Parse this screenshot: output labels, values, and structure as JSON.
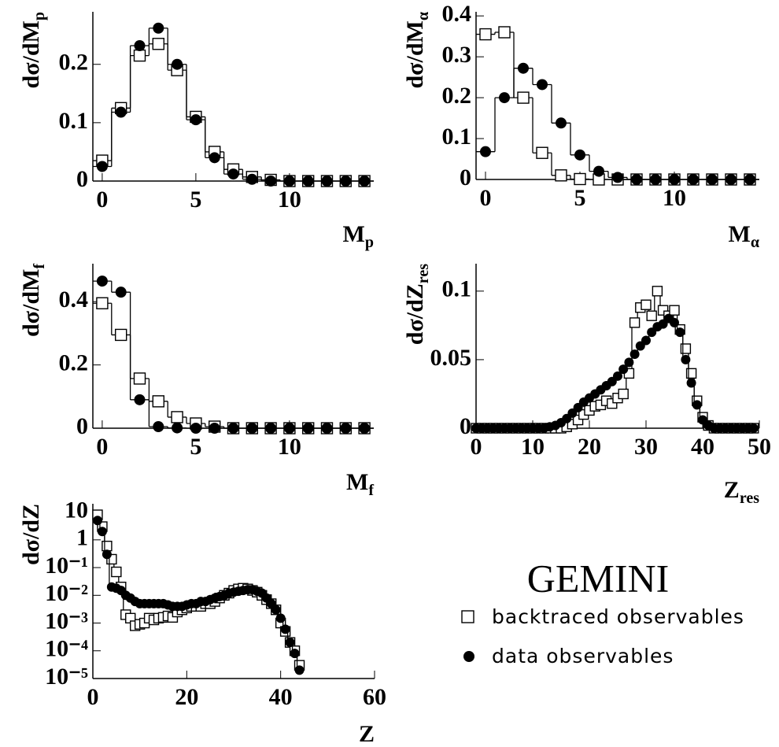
{
  "chart_data": [
    {
      "type": "step",
      "xlabel": {
        "text": "M",
        "sub": "p"
      },
      "ylabel": {
        "text": "dσ/dM",
        "sub": "p"
      },
      "x": [
        0,
        1,
        2,
        3,
        4,
        5,
        6,
        7,
        8,
        9,
        10,
        11,
        12,
        13,
        14
      ],
      "series": [
        {
          "name": "backtraced observables",
          "marker": "square",
          "color": "#000000",
          "values": [
            0.035,
            0.125,
            0.215,
            0.235,
            0.19,
            0.11,
            0.05,
            0.02,
            0.007,
            0.002,
            0,
            0,
            0,
            0,
            0
          ]
        },
        {
          "name": "data observables",
          "marker": "circle",
          "color": "#000000",
          "values": [
            0.025,
            0.118,
            0.232,
            0.262,
            0.2,
            0.105,
            0.04,
            0.012,
            0.003,
            0,
            0,
            0,
            0,
            0,
            0
          ]
        }
      ],
      "xlim": [
        -0.5,
        14.5
      ],
      "xticks": [
        0,
        5,
        10
      ],
      "ylim": [
        0,
        0.29
      ],
      "yticks": [
        0,
        0.1,
        0.2
      ]
    },
    {
      "type": "step",
      "xlabel": {
        "text": "M",
        "sub": "α"
      },
      "ylabel": {
        "text": "dσ/dM",
        "sub": "α"
      },
      "x": [
        0,
        1,
        2,
        3,
        4,
        5,
        6,
        7,
        8,
        9,
        10,
        11,
        12,
        13,
        14
      ],
      "series": [
        {
          "name": "backtraced observables",
          "marker": "square",
          "color": "#000000",
          "values": [
            0.355,
            0.36,
            0.2,
            0.065,
            0.01,
            0.001,
            0,
            0,
            0,
            0,
            0,
            0,
            0,
            0,
            0
          ]
        },
        {
          "name": "data observables",
          "marker": "circle",
          "color": "#000000",
          "values": [
            0.068,
            0.2,
            0.272,
            0.232,
            0.138,
            0.06,
            0.02,
            0.005,
            0,
            0,
            0,
            0,
            0,
            0,
            0
          ]
        }
      ],
      "xlim": [
        -0.5,
        14.5
      ],
      "xticks": [
        0,
        5,
        10
      ],
      "ylim": [
        0,
        0.41
      ],
      "yticks": [
        0,
        0.1,
        0.2,
        0.3,
        0.4
      ]
    },
    {
      "type": "step",
      "xlabel": {
        "text": "M",
        "sub": "f"
      },
      "ylabel": {
        "text": "dσ/dM",
        "sub": "f"
      },
      "x": [
        0,
        1,
        2,
        3,
        4,
        5,
        6,
        7,
        8,
        9,
        10,
        11,
        12,
        13,
        14
      ],
      "series": [
        {
          "name": "backtraced observables",
          "marker": "square",
          "color": "#000000",
          "values": [
            0.395,
            0.295,
            0.157,
            0.085,
            0.035,
            0.015,
            0.005,
            0,
            0,
            0,
            0,
            0,
            0,
            0,
            0
          ]
        },
        {
          "name": "data observables",
          "marker": "circle",
          "color": "#000000",
          "values": [
            0.465,
            0.43,
            0.09,
            0.005,
            0.001,
            0,
            0,
            0,
            0,
            0,
            0,
            0,
            0,
            0,
            0
          ]
        }
      ],
      "xlim": [
        -0.5,
        14.5
      ],
      "xticks": [
        0,
        5,
        10
      ],
      "ylim": [
        0,
        0.52
      ],
      "yticks": [
        0,
        0.2,
        0.4
      ]
    },
    {
      "type": "step",
      "xlabel": {
        "text": "Z",
        "sub": "res"
      },
      "ylabel": {
        "text": "dσ/dZ",
        "sub": "res"
      },
      "x": [
        0,
        1,
        2,
        3,
        4,
        5,
        6,
        7,
        8,
        9,
        10,
        11,
        12,
        13,
        14,
        15,
        16,
        17,
        18,
        19,
        20,
        21,
        22,
        23,
        24,
        25,
        26,
        27,
        28,
        29,
        30,
        31,
        32,
        33,
        34,
        35,
        36,
        37,
        38,
        39,
        40,
        41,
        42,
        43,
        44,
        45,
        46,
        47,
        48,
        49
      ],
      "series": [
        {
          "name": "backtraced observables",
          "marker": "square",
          "color": "#000000",
          "values": [
            0,
            0,
            0,
            0,
            0,
            0,
            0,
            0,
            0,
            0,
            0,
            0,
            0,
            0,
            0,
            0,
            0.001,
            0.003,
            0.006,
            0.01,
            0.013,
            0.016,
            0.017,
            0.02,
            0.018,
            0.022,
            0.025,
            0.04,
            0.077,
            0.088,
            0.09,
            0.082,
            0.1,
            0.086,
            0.082,
            0.086,
            0.072,
            0.058,
            0.04,
            0.02,
            0.008,
            0.002,
            0,
            0,
            0,
            0,
            0,
            0,
            0,
            0
          ]
        },
        {
          "name": "data observables",
          "marker": "circle",
          "color": "#000000",
          "values": [
            0,
            0,
            0,
            0,
            0,
            0,
            0,
            0,
            0,
            0,
            0,
            0,
            0,
            0.001,
            0.002,
            0.004,
            0.007,
            0.011,
            0.015,
            0.019,
            0.022,
            0.025,
            0.028,
            0.031,
            0.034,
            0.038,
            0.043,
            0.048,
            0.054,
            0.06,
            0.064,
            0.07,
            0.074,
            0.076,
            0.08,
            0.077,
            0.07,
            0.05,
            0.033,
            0.017,
            0.006,
            0.002,
            0,
            0,
            0,
            0,
            0,
            0,
            0,
            0
          ]
        }
      ],
      "xlim": [
        0,
        50
      ],
      "xticks": [
        0,
        10,
        20,
        30,
        40,
        50
      ],
      "ylim": [
        0,
        0.12
      ],
      "yticks": [
        0,
        0.05,
        0.1
      ]
    },
    {
      "type": "step",
      "xlabel": {
        "text": "Z"
      },
      "ylabel": {
        "text": "dσ/dZ"
      },
      "log_y": true,
      "x": [
        1,
        2,
        3,
        4,
        5,
        6,
        7,
        8,
        9,
        10,
        11,
        12,
        13,
        14,
        15,
        16,
        17,
        18,
        19,
        20,
        21,
        22,
        23,
        24,
        25,
        26,
        27,
        28,
        29,
        30,
        31,
        32,
        33,
        34,
        35,
        36,
        37,
        38,
        39,
        40,
        41,
        42,
        43,
        44
      ],
      "series": [
        {
          "name": "backtraced observables",
          "marker": "square",
          "color": "#000000",
          "values": [
            8,
            3,
            0.6,
            0.2,
            0.07,
            0.02,
            0.002,
            0.0015,
            0.0008,
            0.0009,
            0.001,
            0.0015,
            0.0013,
            0.0015,
            0.0016,
            0.0018,
            0.0016,
            0.0025,
            0.003,
            0.0035,
            0.004,
            0.004,
            0.004,
            0.005,
            0.005,
            0.006,
            0.008,
            0.01,
            0.012,
            0.015,
            0.017,
            0.018,
            0.017,
            0.015,
            0.013,
            0.01,
            0.007,
            0.005,
            0.003,
            0.001,
            0.0005,
            0.0002,
            0.0001,
            3e-05
          ]
        },
        {
          "name": "data observables",
          "marker": "circle",
          "color": "#000000",
          "values": [
            5,
            2,
            0.3,
            0.02,
            0.018,
            0.015,
            0.01,
            0.008,
            0.006,
            0.005,
            0.005,
            0.005,
            0.005,
            0.005,
            0.005,
            0.0045,
            0.004,
            0.004,
            0.004,
            0.0045,
            0.005,
            0.005,
            0.006,
            0.006,
            0.007,
            0.008,
            0.009,
            0.01,
            0.012,
            0.013,
            0.014,
            0.015,
            0.016,
            0.016,
            0.014,
            0.012,
            0.008,
            0.005,
            0.003,
            0.0015,
            0.0006,
            0.0002,
            8e-05,
            2e-05
          ]
        }
      ],
      "xlim": [
        0,
        60
      ],
      "xticks": [
        0,
        20,
        40,
        60
      ],
      "ylim": [
        1e-05,
        20
      ],
      "yticks": [
        {
          "value": 10,
          "label": "10"
        },
        {
          "value": 1,
          "label": "1"
        },
        {
          "value": 0.1,
          "label": "10⁻¹"
        },
        {
          "value": 0.01,
          "label": "10⁻²"
        },
        {
          "value": 0.001,
          "label": "10⁻³"
        },
        {
          "value": 0.0001,
          "label": "10⁻⁴"
        },
        {
          "value": 1e-05,
          "label": "10⁻⁵"
        }
      ]
    }
  ],
  "model": "GEMINI"
}
